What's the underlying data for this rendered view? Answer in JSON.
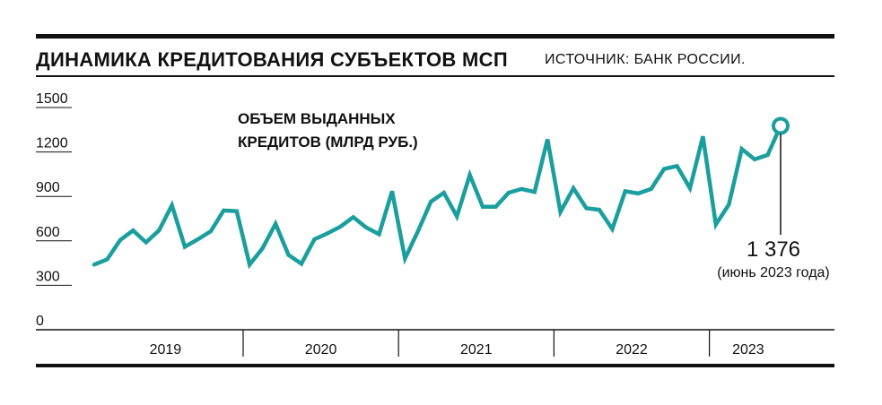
{
  "header": {
    "title": "ДИНАМИКА КРЕДИТОВАНИЯ СУБЪЕКТОВ МСП",
    "source": "ИСТОЧНИК: БАНК РОССИИ."
  },
  "chart_data": {
    "type": "line",
    "series": [
      {
        "name": "ОБЪЕМ ВЫДАННЫХ КРЕДИТОВ (МЛРД РУБ.)",
        "values": [
          440,
          475,
          605,
          670,
          590,
          670,
          840,
          560,
          610,
          665,
          805,
          800,
          440,
          550,
          715,
          505,
          445,
          610,
          650,
          695,
          760,
          690,
          645,
          935,
          480,
          665,
          865,
          925,
          765,
          1045,
          830,
          830,
          925,
          950,
          930,
          1285,
          795,
          955,
          820,
          810,
          680,
          935,
          920,
          950,
          1085,
          1105,
          955,
          1305,
          710,
          845,
          1220,
          1150,
          1180,
          1376
        ],
        "color": "#1a9e9e"
      }
    ],
    "years": [
      "2019",
      "2020",
      "2021",
      "2022",
      "2023"
    ],
    "yticks": [
      "1500",
      "1200",
      "900",
      "600",
      "300",
      "0"
    ],
    "ylim": [
      0,
      1500
    ],
    "series_label_line1": "ОБЪЕМ ВЫДАННЫХ",
    "series_label_line2": "КРЕДИТОВ (МЛРД РУБ.)",
    "annotation": {
      "value": "1 376",
      "caption": "(июнь 2023 года)"
    }
  }
}
